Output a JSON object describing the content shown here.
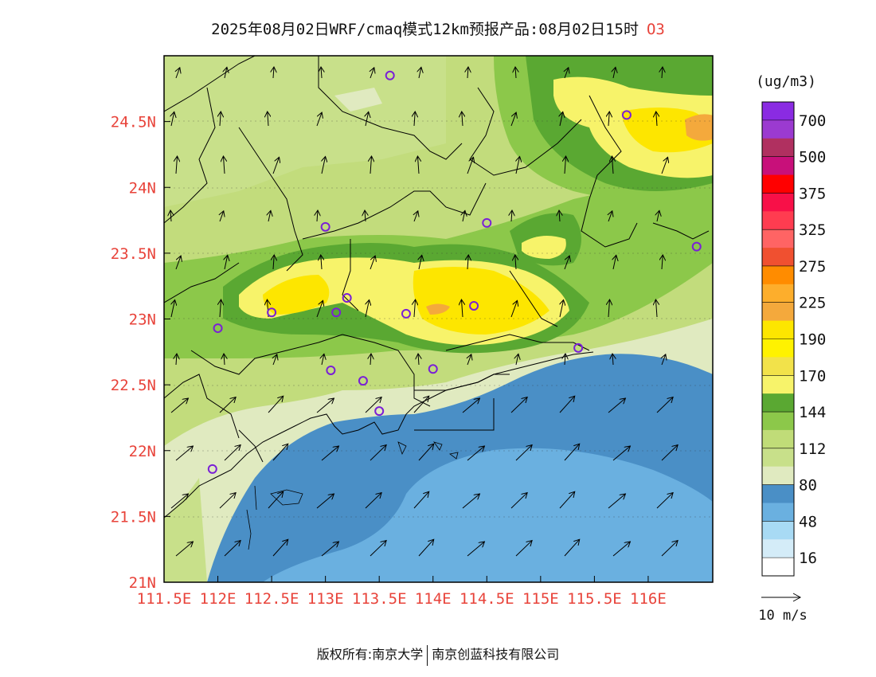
{
  "title": "2025年08月02日WRF/cmaq模式12km预报产品:08月02日15时",
  "species": "O3",
  "unit_label": "(ug/m3)",
  "colorbar": {
    "labels": [
      "700",
      "500",
      "375",
      "325",
      "275",
      "225",
      "190",
      "170",
      "144",
      "112",
      "80",
      "48",
      "16"
    ],
    "colors_top_to_bottom": [
      "#8a2be2",
      "#9b3ad0",
      "#b03060",
      "#c8107a",
      "#ff0000",
      "#f81048",
      "#ff3c50",
      "#ff6464",
      "#f05030",
      "#ff8c00",
      "#fdae2c",
      "#f4a93c",
      "#fde600",
      "#fff200",
      "#f2e24a",
      "#f7f36a",
      "#5aa832",
      "#8cc84a",
      "#c0dc78",
      "#c8e08a",
      "#e0eac0",
      "#4a8fc6",
      "#6ab0e0",
      "#a8daf4",
      "#d4ecf8",
      "#ffffff"
    ]
  },
  "axes": {
    "x_ticks": [
      "111.5E",
      "112E",
      "112.5E",
      "113E",
      "113.5E",
      "114E",
      "114.5E",
      "115E",
      "115.5E",
      "116E"
    ],
    "y_ticks": [
      "21N",
      "21.5N",
      "22N",
      "22.5N",
      "23N",
      "23.5N",
      "24N",
      "24.5N"
    ],
    "x_range": [
      111.5,
      116.6
    ],
    "y_range": [
      21.0,
      25.0
    ],
    "tick_color": "#e8433a"
  },
  "wind_reference": "10 m/s",
  "footer": {
    "copyright_prefix": "版权所有:",
    "org1": "南京大学",
    "org2": "南京创蓝科技有限公司"
  },
  "stations": [
    {
      "lon": 113.6,
      "lat": 24.85
    },
    {
      "lon": 115.8,
      "lat": 24.55
    },
    {
      "lon": 113.0,
      "lat": 23.7
    },
    {
      "lon": 114.5,
      "lat": 23.73
    },
    {
      "lon": 116.45,
      "lat": 23.55
    },
    {
      "lon": 112.5,
      "lat": 23.05
    },
    {
      "lon": 112.0,
      "lat": 22.93
    },
    {
      "lon": 113.2,
      "lat": 23.16
    },
    {
      "lon": 113.1,
      "lat": 23.05
    },
    {
      "lon": 113.75,
      "lat": 23.04
    },
    {
      "lon": 114.38,
      "lat": 23.1
    },
    {
      "lon": 113.05,
      "lat": 22.61
    },
    {
      "lon": 113.35,
      "lat": 22.53
    },
    {
      "lon": 114.0,
      "lat": 22.62
    },
    {
      "lon": 113.5,
      "lat": 22.3
    },
    {
      "lon": 115.35,
      "lat": 22.78
    },
    {
      "lon": 111.95,
      "lat": 21.86
    }
  ]
}
